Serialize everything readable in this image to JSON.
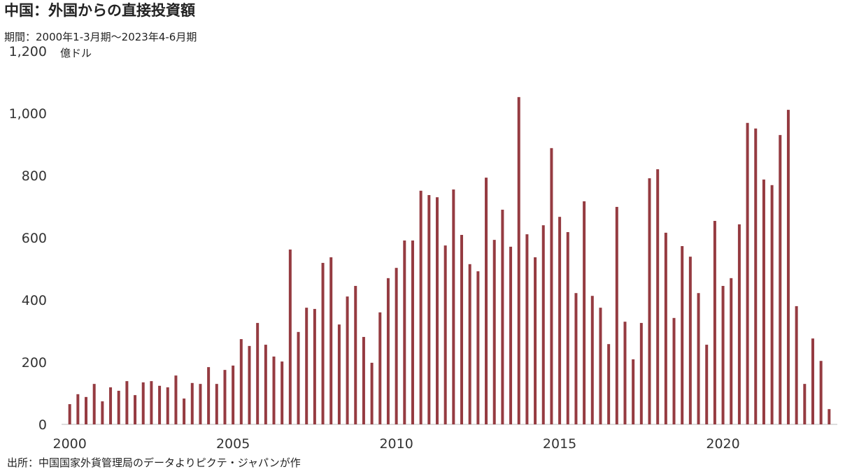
{
  "chart_data": {
    "type": "bar",
    "title": "中国：外国からの直接投資額",
    "subtitle": "期間：2000年1-3月期～2023年4-6月期",
    "ylabel": "億ドル",
    "source": "出所：中国国家外貨管理局のデータよりピクテ・ジャパンが作",
    "color": "#953b41",
    "grid": false,
    "xlim": [
      1999.75,
      2023.5
    ],
    "xticks": [
      2000,
      2005,
      2010,
      2015,
      2020
    ],
    "ylim": [
      0,
      1200
    ],
    "yticks": [
      0,
      200,
      400,
      600,
      800,
      {
        "value": 1000,
        "label": "1,000"
      },
      {
        "value": 1200,
        "label": "1,200"
      }
    ],
    "x": [
      2000,
      2000.25,
      2000.5,
      2000.75,
      2001,
      2001.25,
      2001.5,
      2001.75,
      2002,
      2002.25,
      2002.5,
      2002.75,
      2003,
      2003.25,
      2003.5,
      2003.75,
      2004,
      2004.25,
      2004.5,
      2004.75,
      2005,
      2005.25,
      2005.5,
      2005.75,
      2006,
      2006.25,
      2006.5,
      2006.75,
      2007,
      2007.25,
      2007.5,
      2007.75,
      2008,
      2008.25,
      2008.5,
      2008.75,
      2009,
      2009.25,
      2009.5,
      2009.75,
      2010,
      2010.25,
      2010.5,
      2010.75,
      2011,
      2011.25,
      2011.5,
      2011.75,
      2012,
      2012.25,
      2012.5,
      2012.75,
      2013,
      2013.25,
      2013.5,
      2013.75,
      2014,
      2014.25,
      2014.5,
      2014.75,
      2015,
      2015.25,
      2015.5,
      2015.75,
      2016,
      2016.25,
      2016.5,
      2016.75,
      2017,
      2017.25,
      2017.5,
      2017.75,
      2018,
      2018.25,
      2018.5,
      2018.75,
      2019,
      2019.25,
      2019.5,
      2019.75,
      2020,
      2020.25,
      2020.5,
      2020.75,
      2021,
      2021.25,
      2021.5,
      2021.75,
      2022,
      2022.25,
      2022.5,
      2022.75,
      2023,
      2023.25
    ],
    "values": [
      65,
      97,
      88,
      130,
      74,
      119,
      108,
      139,
      94,
      135,
      139,
      124,
      119,
      157,
      83,
      133,
      130,
      184,
      130,
      175,
      189,
      274,
      252,
      326,
      256,
      218,
      202,
      562,
      297,
      375,
      371,
      519,
      537,
      321,
      411,
      445,
      281,
      198,
      360,
      470,
      503,
      591,
      591,
      751,
      737,
      730,
      575,
      755,
      609,
      515,
      492,
      793,
      593,
      690,
      571,
      1052,
      611,
      537,
      640,
      888,
      667,
      618,
      422,
      717,
      413,
      375,
      258,
      699,
      330,
      209,
      326,
      791,
      820,
      616,
      342,
      573,
      539,
      422,
      256,
      654,
      445,
      470,
      643,
      969,
      951,
      787,
      769,
      930,
      1011,
      380,
      130,
      276,
      204,
      49
    ]
  }
}
